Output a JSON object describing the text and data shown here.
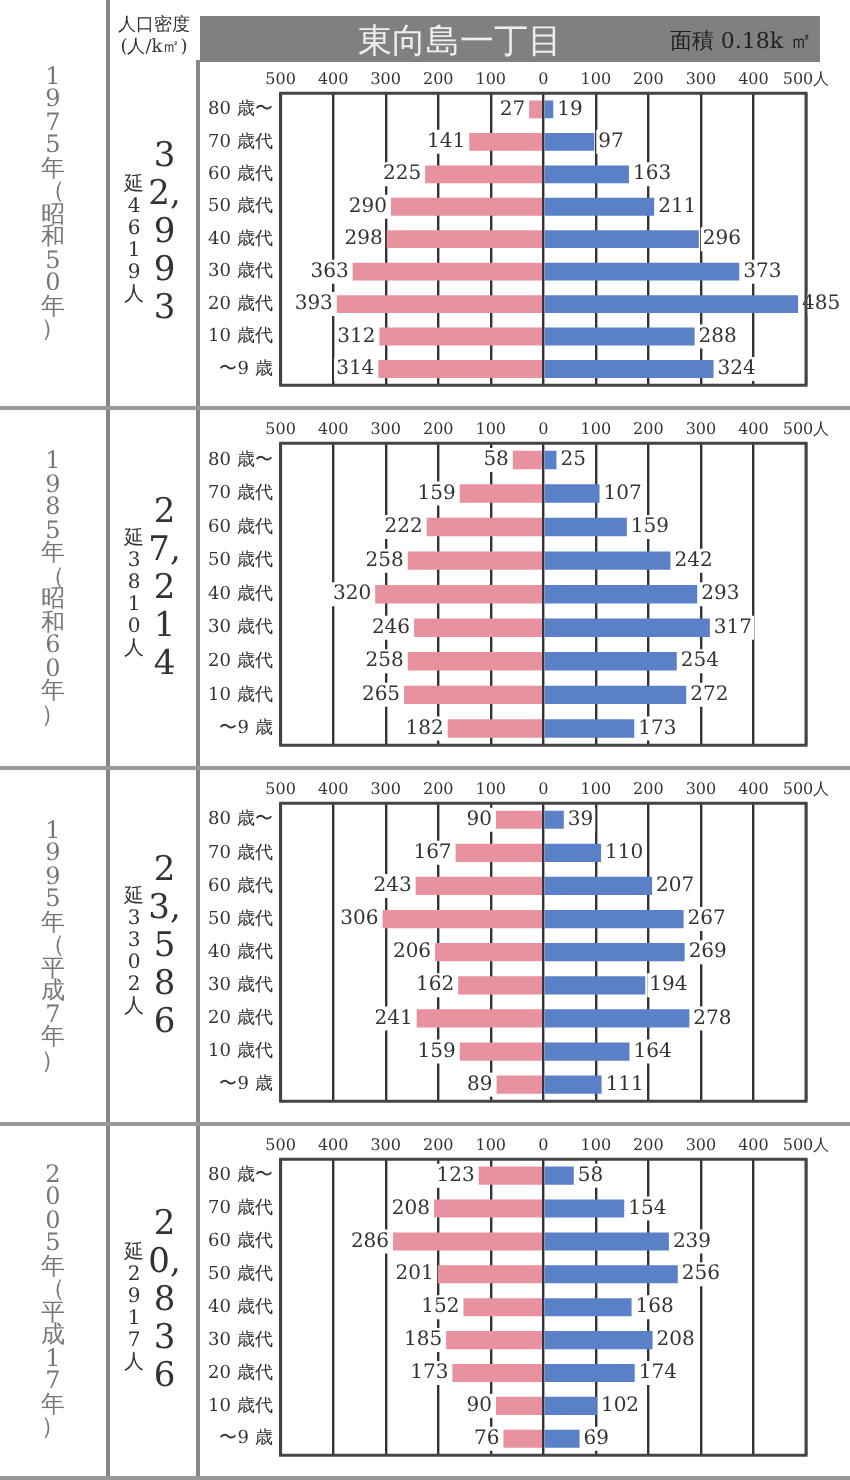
{
  "chart_data": [
    {
      "type": "bar",
      "orientation": "horizontal",
      "grid": "x",
      "title": "東向島一丁目",
      "annotations": [
        "1975年（昭和50年）",
        "32,993",
        "延4619人",
        "人口密度(人/k㎡)",
        "面積 0.18k ㎡"
      ],
      "categories": [
        "80 歳〜",
        "70 歳代",
        "60 歳代",
        "50 歳代",
        "40 歳代",
        "30 歳代",
        "20 歳代",
        "10 歳代",
        "〜9 歳"
      ],
      "xlim": [
        -500,
        500
      ],
      "xticks": [
        {
          "value": -500,
          "label": "500"
        },
        {
          "value": -400,
          "label": "400"
        },
        {
          "value": -300,
          "label": "300"
        },
        {
          "value": -200,
          "label": "200"
        },
        {
          "value": -100,
          "label": "100"
        },
        0,
        100,
        200,
        300,
        400,
        {
          "value": 500,
          "label": "500人"
        }
      ],
      "series": [
        {
          "color": "#e8919f",
          "base": [
            -27,
            -141,
            -225,
            -290,
            -298,
            -363,
            -393,
            -312,
            -314
          ],
          "values": [
            27,
            141,
            225,
            290,
            298,
            363,
            393,
            312,
            314
          ],
          "value_labels": [
            "27",
            "141",
            "225",
            "290",
            "298",
            "363",
            "393",
            "312",
            "314"
          ]
        },
        {
          "color": "#5a80c8",
          "values": [
            19,
            97,
            163,
            211,
            296,
            373,
            485,
            288,
            324
          ],
          "value_labels": [
            "19",
            "97",
            "163",
            "211",
            "296",
            "373",
            "485",
            "288",
            "324"
          ]
        }
      ]
    },
    {
      "type": "bar",
      "orientation": "horizontal",
      "grid": "x",
      "annotations": [
        "1985年（昭和60年）",
        "27,214",
        "延3810人"
      ],
      "categories": [
        "80 歳〜",
        "70 歳代",
        "60 歳代",
        "50 歳代",
        "40 歳代",
        "30 歳代",
        "20 歳代",
        "10 歳代",
        "〜9 歳"
      ],
      "xlim": [
        -500,
        500
      ],
      "xticks": [
        {
          "value": -500,
          "label": "500"
        },
        {
          "value": -400,
          "label": "400"
        },
        {
          "value": -300,
          "label": "300"
        },
        {
          "value": -200,
          "label": "200"
        },
        {
          "value": -100,
          "label": "100"
        },
        0,
        100,
        200,
        300,
        400,
        {
          "value": 500,
          "label": "500人"
        }
      ],
      "series": [
        {
          "color": "#e8919f",
          "base": [
            -58,
            -159,
            -222,
            -258,
            -320,
            -246,
            -258,
            -265,
            -182
          ],
          "values": [
            58,
            159,
            222,
            258,
            320,
            246,
            258,
            265,
            182
          ],
          "value_labels": [
            "58",
            "159",
            "222",
            "258",
            "320",
            "246",
            "258",
            "265",
            "182"
          ]
        },
        {
          "color": "#5a80c8",
          "values": [
            25,
            107,
            159,
            242,
            293,
            317,
            254,
            272,
            173
          ],
          "value_labels": [
            "25",
            "107",
            "159",
            "242",
            "293",
            "317",
            "254",
            "272",
            "173"
          ]
        }
      ]
    },
    {
      "type": "bar",
      "orientation": "horizontal",
      "grid": "x",
      "annotations": [
        "1995年（平成7年）",
        "23,586",
        "延3302人"
      ],
      "categories": [
        "80 歳〜",
        "70 歳代",
        "60 歳代",
        "50 歳代",
        "40 歳代",
        "30 歳代",
        "20 歳代",
        "10 歳代",
        "〜9 歳"
      ],
      "xlim": [
        -500,
        500
      ],
      "xticks": [
        {
          "value": -500,
          "label": "500"
        },
        {
          "value": -400,
          "label": "400"
        },
        {
          "value": -300,
          "label": "300"
        },
        {
          "value": -200,
          "label": "200"
        },
        {
          "value": -100,
          "label": "100"
        },
        0,
        100,
        200,
        300,
        400,
        {
          "value": 500,
          "label": "500人"
        }
      ],
      "series": [
        {
          "color": "#e8919f",
          "base": [
            -90,
            -167,
            -243,
            -306,
            -206,
            -162,
            -241,
            -159,
            -89
          ],
          "values": [
            90,
            167,
            243,
            306,
            206,
            162,
            241,
            159,
            89
          ],
          "value_labels": [
            "90",
            "167",
            "243",
            "306",
            "206",
            "162",
            "241",
            "159",
            "89"
          ]
        },
        {
          "color": "#5a80c8",
          "values": [
            39,
            110,
            207,
            267,
            269,
            194,
            278,
            164,
            111
          ],
          "value_labels": [
            "39",
            "110",
            "207",
            "267",
            "269",
            "194",
            "278",
            "164",
            "111"
          ]
        }
      ]
    },
    {
      "type": "bar",
      "orientation": "horizontal",
      "grid": "x",
      "annotations": [
        "2005年（平成17年）",
        "20,836",
        "延2917人"
      ],
      "categories": [
        "80 歳〜",
        "70 歳代",
        "60 歳代",
        "50 歳代",
        "40 歳代",
        "30 歳代",
        "20 歳代",
        "10 歳代",
        "〜9 歳"
      ],
      "xlim": [
        -500,
        500
      ],
      "xticks": [
        {
          "value": -500,
          "label": "500"
        },
        {
          "value": -400,
          "label": "400"
        },
        {
          "value": -300,
          "label": "300"
        },
        {
          "value": -200,
          "label": "200"
        },
        {
          "value": -100,
          "label": "100"
        },
        0,
        100,
        200,
        300,
        400,
        {
          "value": 500,
          "label": "500人"
        }
      ],
      "series": [
        {
          "color": "#e8919f",
          "base": [
            -123,
            -208,
            -286,
            -201,
            -152,
            -185,
            -173,
            -90,
            -76
          ],
          "values": [
            123,
            208,
            286,
            201,
            152,
            185,
            173,
            90,
            76
          ],
          "value_labels": [
            "123",
            "208",
            "286",
            "201",
            "152",
            "185",
            "173",
            "90",
            "76"
          ]
        },
        {
          "color": "#5a80c8",
          "values": [
            58,
            154,
            239,
            256,
            168,
            208,
            174,
            102,
            69
          ],
          "value_labels": [
            "58",
            "154",
            "239",
            "256",
            "168",
            "208",
            "174",
            "102",
            "69"
          ]
        }
      ]
    }
  ]
}
